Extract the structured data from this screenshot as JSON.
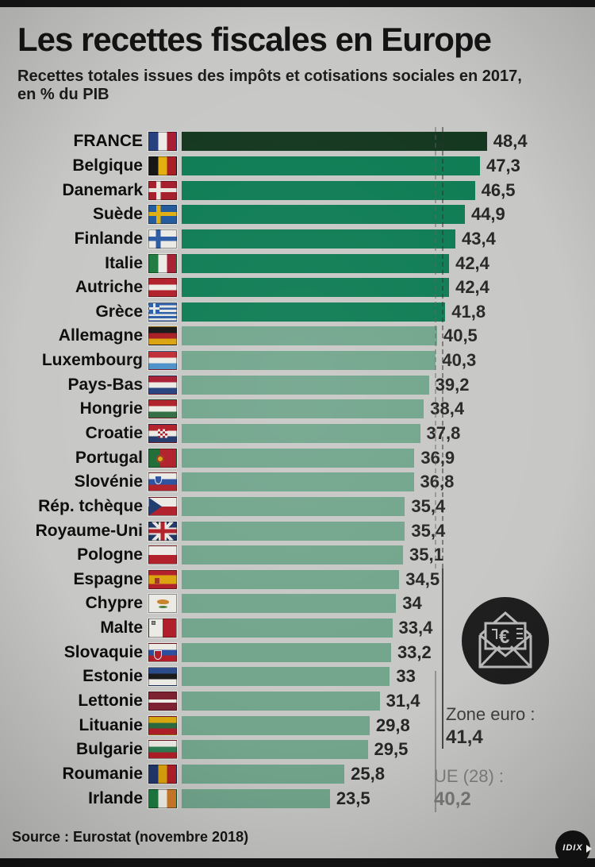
{
  "title": "Les recettes fiscales en Europe",
  "subtitle": {
    "line1": "Recettes totales issues des impôts et cotisations sociales en 2017,",
    "line2": "en % du PIB"
  },
  "source": "Source : Eurostat (novembre 2018)",
  "logo": {
    "text": "IDIX"
  },
  "icon": {
    "name": "envelope-euro-icon",
    "currency": "€"
  },
  "palette": {
    "bar_darkest": "#14371f",
    "bar_mid": "#0e7c54",
    "bar_light": "#72a58c",
    "background": "#c7c7c5",
    "zone_euro_line": "#4a4a4a",
    "ue28_line": "#929292"
  },
  "annotations": {
    "zone_euro": {
      "label": "Zone euro :",
      "value": 41.4,
      "display": "41,4"
    },
    "ue28": {
      "label": "UE (28) :",
      "value": 40.2,
      "display": "40,2"
    }
  },
  "chart_data": {
    "type": "bar",
    "orientation": "horizontal",
    "title": "Les recettes fiscales en Europe",
    "xlabel": "% du PIB",
    "xlim": [
      0,
      48.4
    ],
    "grid": false,
    "reference_lines": [
      {
        "name": "zone-euro",
        "label": "Zone euro :",
        "value": 41.4
      },
      {
        "name": "ue-28",
        "label": "UE (28) :",
        "value": 40.2
      }
    ],
    "rows": [
      {
        "label": "FRANCE",
        "flag": "france",
        "value": 48.4,
        "display": "48,4",
        "shade": "darkest"
      },
      {
        "label": "Belgique",
        "flag": "belgique",
        "value": 47.3,
        "display": "47,3",
        "shade": "mid"
      },
      {
        "label": "Danemark",
        "flag": "danemark",
        "value": 46.5,
        "display": "46,5",
        "shade": "mid"
      },
      {
        "label": "Suède",
        "flag": "suede",
        "value": 44.9,
        "display": "44,9",
        "shade": "mid"
      },
      {
        "label": "Finlande",
        "flag": "finlande",
        "value": 43.4,
        "display": "43,4",
        "shade": "mid"
      },
      {
        "label": "Italie",
        "flag": "italie",
        "value": 42.4,
        "display": "42,4",
        "shade": "mid"
      },
      {
        "label": "Autriche",
        "flag": "autriche",
        "value": 42.4,
        "display": "42,4",
        "shade": "mid"
      },
      {
        "label": "Grèce",
        "flag": "grece",
        "value": 41.8,
        "display": "41,8",
        "shade": "mid"
      },
      {
        "label": "Allemagne",
        "flag": "allemagne",
        "value": 40.5,
        "display": "40,5",
        "shade": "light"
      },
      {
        "label": "Luxembourg",
        "flag": "luxembourg",
        "value": 40.3,
        "display": "40,3",
        "shade": "light"
      },
      {
        "label": "Pays-Bas",
        "flag": "pays-bas",
        "value": 39.2,
        "display": "39,2",
        "shade": "light"
      },
      {
        "label": "Hongrie",
        "flag": "hongrie",
        "value": 38.4,
        "display": "38,4",
        "shade": "light"
      },
      {
        "label": "Croatie",
        "flag": "croatie",
        "value": 37.8,
        "display": "37,8",
        "shade": "light"
      },
      {
        "label": "Portugal",
        "flag": "portugal",
        "value": 36.9,
        "display": "36,9",
        "shade": "light"
      },
      {
        "label": "Slovénie",
        "flag": "slovenie",
        "value": 36.8,
        "display": "36,8",
        "shade": "light"
      },
      {
        "label": "Rép. tchèque",
        "flag": "tcheque",
        "value": 35.4,
        "display": "35,4",
        "shade": "light"
      },
      {
        "label": "Royaume-Uni",
        "flag": "royaume-uni",
        "value": 35.4,
        "display": "35,4",
        "shade": "light"
      },
      {
        "label": "Pologne",
        "flag": "pologne",
        "value": 35.1,
        "display": "35,1",
        "shade": "light"
      },
      {
        "label": "Espagne",
        "flag": "espagne",
        "value": 34.5,
        "display": "34,5",
        "shade": "light"
      },
      {
        "label": "Chypre",
        "flag": "chypre",
        "value": 34,
        "display": "34",
        "shade": "light"
      },
      {
        "label": "Malte",
        "flag": "malte",
        "value": 33.4,
        "display": "33,4",
        "shade": "light"
      },
      {
        "label": "Slovaquie",
        "flag": "slovaquie",
        "value": 33.2,
        "display": "33,2",
        "shade": "light"
      },
      {
        "label": "Estonie",
        "flag": "estonie",
        "value": 33,
        "display": "33",
        "shade": "light"
      },
      {
        "label": "Lettonie",
        "flag": "lettonie",
        "value": 31.4,
        "display": "31,4",
        "shade": "light"
      },
      {
        "label": "Lituanie",
        "flag": "lituanie",
        "value": 29.8,
        "display": "29,8",
        "shade": "light"
      },
      {
        "label": "Bulgarie",
        "flag": "bulgarie",
        "value": 29.5,
        "display": "29,5",
        "shade": "light"
      },
      {
        "label": "Roumanie",
        "flag": "roumanie",
        "value": 25.8,
        "display": "25,8",
        "shade": "light"
      },
      {
        "label": "Irlande",
        "flag": "irlande",
        "value": 23.5,
        "display": "23,5",
        "shade": "light"
      }
    ]
  }
}
